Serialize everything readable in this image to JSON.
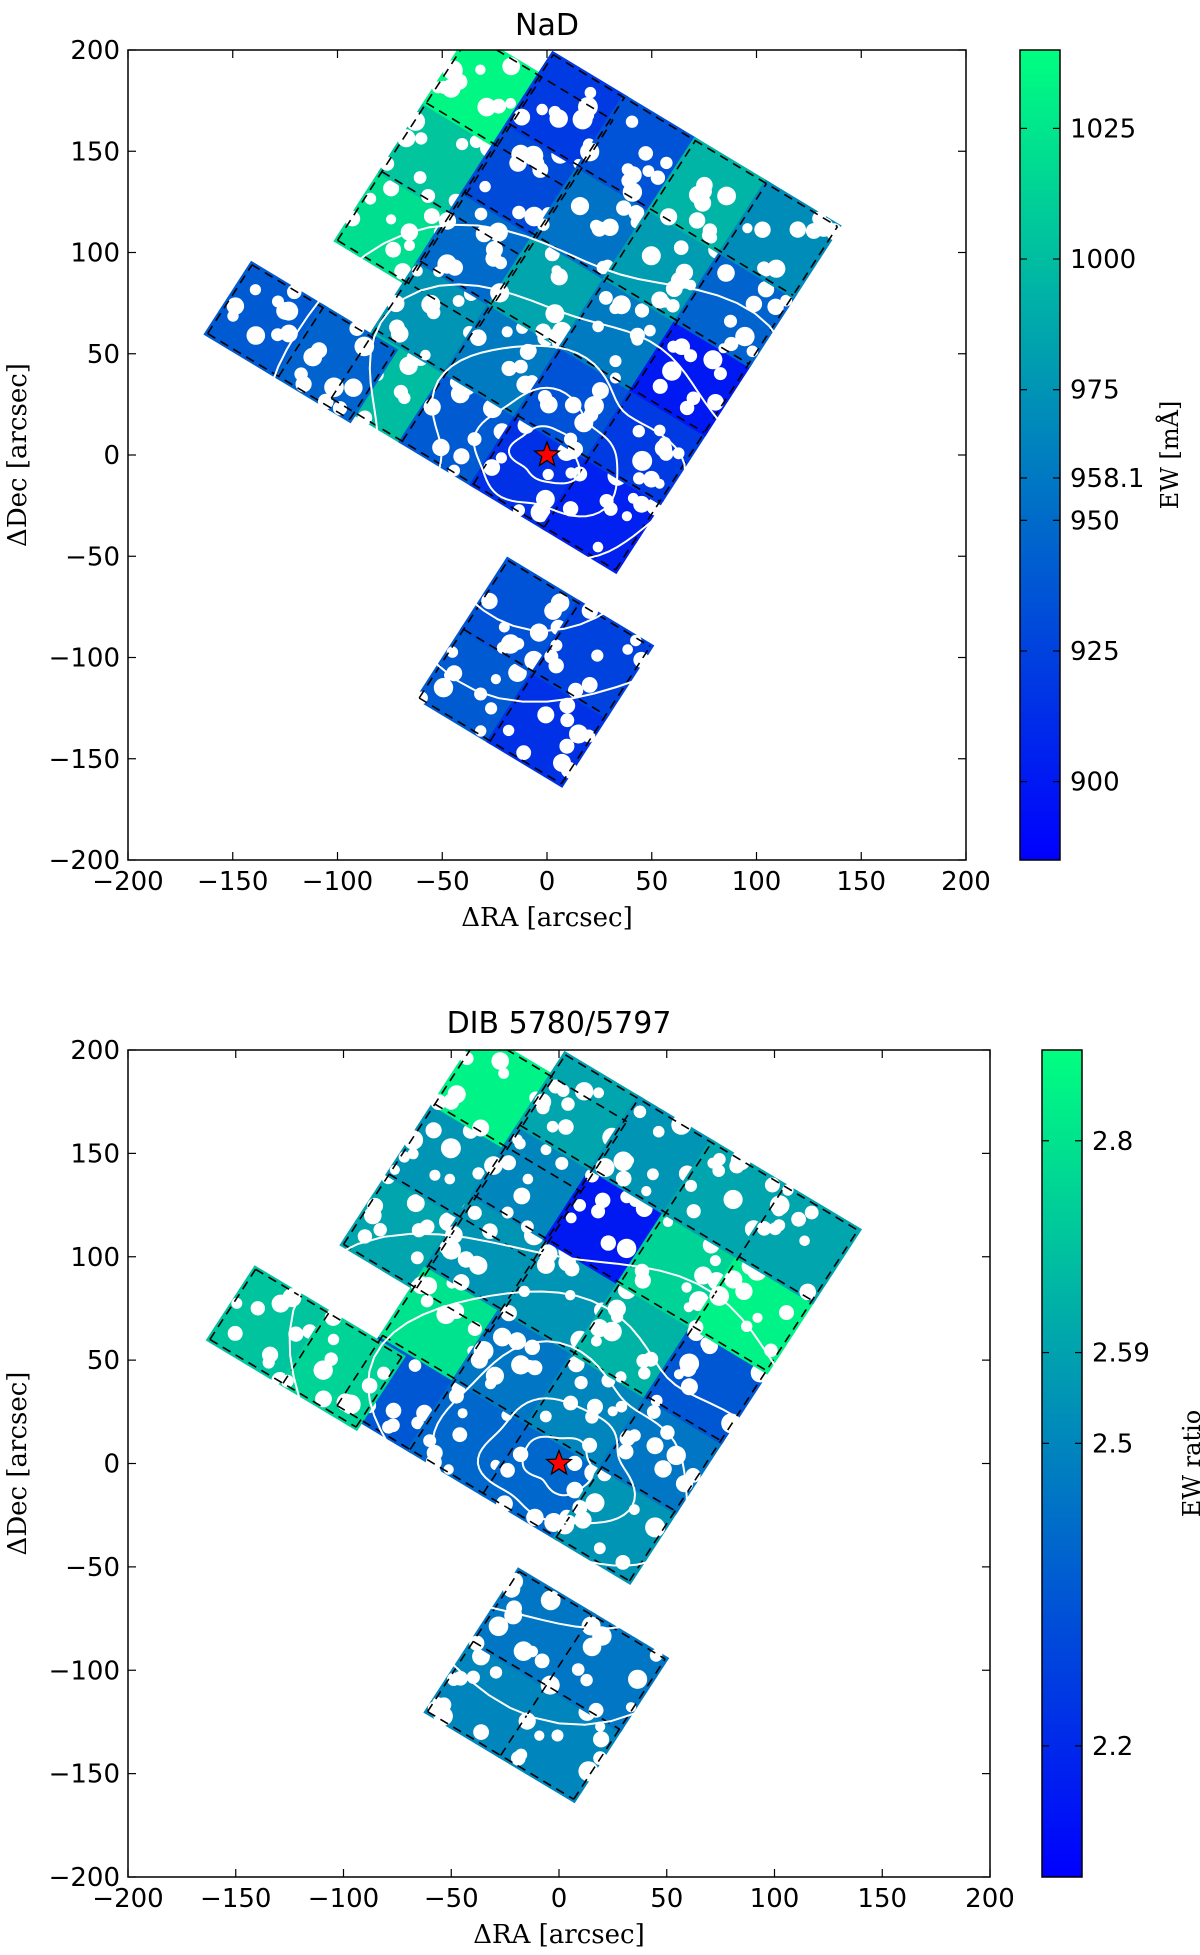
{
  "chart_data": [
    {
      "type": "heatmap",
      "title": "NaD",
      "xlabel": "ΔRA [arcsec]",
      "ylabel": "ΔDec [arcsec]",
      "xlim": [
        -200,
        200
      ],
      "ylim": [
        -200,
        200
      ],
      "xticks": [
        -200,
        -150,
        -100,
        -50,
        0,
        50,
        100,
        150,
        200
      ],
      "yticks": [
        -200,
        -150,
        -100,
        -50,
        0,
        50,
        100,
        150,
        200
      ],
      "x_tick_labels": [
        "−200",
        "−150",
        "−100",
        "−50",
        "0",
        "50",
        "100",
        "150",
        "200"
      ],
      "y_tick_labels": [
        "−200",
        "−150",
        "−100",
        "−50",
        "0",
        "50",
        "100",
        "150",
        "200"
      ],
      "colorbar": {
        "label": "EW [mÅ]",
        "range": [
          885,
          1040
        ],
        "ticks": [
          900,
          925,
          950,
          958.1,
          975,
          1000,
          1025
        ],
        "tick_labels": [
          "900",
          "925",
          "950",
          "958.1",
          "975",
          "1000",
          "1025"
        ],
        "colormap": [
          "#0000ff",
          "#00ff80"
        ]
      },
      "star": {
        "x": 0,
        "y": 0,
        "color": "#ff0000"
      },
      "cells": [
        {
          "group": "A",
          "i": 0,
          "j": 0,
          "value": 1020
        },
        {
          "group": "A",
          "i": 0,
          "j": 1,
          "value": 1005
        },
        {
          "group": "A",
          "i": 0,
          "j": 2,
          "value": 1035
        },
        {
          "group": "A",
          "i": 1,
          "j": 0,
          "value": 993
        },
        {
          "group": "A",
          "i": 1,
          "j": 1,
          "value": 1030
        },
        {
          "group": "A",
          "i": 1,
          "j": 2,
          "value": 955
        },
        {
          "group": "B",
          "i": 0,
          "j": 0,
          "value": 1000
        },
        {
          "group": "B",
          "i": 0,
          "j": 1,
          "value": 975
        },
        {
          "group": "B",
          "i": 0,
          "j": 2,
          "value": 950
        },
        {
          "group": "B",
          "i": 0,
          "j": 3,
          "value": 930
        },
        {
          "group": "B",
          "i": 0,
          "j": 4,
          "value": 920
        },
        {
          "group": "B",
          "i": 1,
          "j": 0,
          "value": 940
        },
        {
          "group": "B",
          "i": 1,
          "j": 1,
          "value": 960
        },
        {
          "group": "B",
          "i": 1,
          "j": 2,
          "value": 985
        },
        {
          "group": "B",
          "i": 1,
          "j": 3,
          "value": 955
        },
        {
          "group": "B",
          "i": 1,
          "j": 4,
          "value": 935
        },
        {
          "group": "B",
          "i": 2,
          "j": 0,
          "value": 915
        },
        {
          "group": "B",
          "i": 2,
          "j": 1,
          "value": 935
        },
        {
          "group": "B",
          "i": 2,
          "j": 2,
          "value": 960
        },
        {
          "group": "B",
          "i": 2,
          "j": 3,
          "value": 980
        },
        {
          "group": "B",
          "i": 2,
          "j": 4,
          "value": 995
        },
        {
          "group": "B",
          "i": 3,
          "j": 0,
          "value": 905
        },
        {
          "group": "B",
          "i": 3,
          "j": 1,
          "value": 920
        },
        {
          "group": "B",
          "i": 3,
          "j": 2,
          "value": 900
        },
        {
          "group": "B",
          "i": 3,
          "j": 3,
          "value": 945
        },
        {
          "group": "B",
          "i": 3,
          "j": 4,
          "value": 970
        },
        {
          "group": "C",
          "i": 0,
          "j": 0,
          "value": 940
        },
        {
          "group": "C",
          "i": 0,
          "j": 1,
          "value": 935
        },
        {
          "group": "C",
          "i": 1,
          "j": 0,
          "value": 915
        },
        {
          "group": "C",
          "i": 1,
          "j": 1,
          "value": 925
        },
        {
          "group": "D",
          "i": 0,
          "j": 0,
          "value": 940
        },
        {
          "group": "D",
          "i": 1,
          "j": 0,
          "value": 945
        }
      ]
    },
    {
      "type": "heatmap",
      "title": "DIB 5780/5797",
      "xlabel": "ΔRA [arcsec]",
      "ylabel": "ΔDec [arcsec]",
      "xlim": [
        -200,
        200
      ],
      "ylim": [
        -200,
        200
      ],
      "xticks": [
        -200,
        -150,
        -100,
        -50,
        0,
        50,
        100,
        150,
        200
      ],
      "yticks": [
        -200,
        -150,
        -100,
        -50,
        0,
        50,
        100,
        150,
        200
      ],
      "x_tick_labels": [
        "−200",
        "−150",
        "−100",
        "−50",
        "0",
        "50",
        "100",
        "150",
        "200"
      ],
      "y_tick_labels": [
        "−200",
        "−150",
        "−100",
        "−50",
        "0",
        "50",
        "100",
        "150",
        "200"
      ],
      "colorbar": {
        "label": "EW ratio",
        "range": [
          2.07,
          2.89
        ],
        "ticks": [
          2.2,
          2.5,
          2.59,
          2.8
        ],
        "tick_labels": [
          "2.2",
          "2.5",
          "2.59",
          "2.8"
        ],
        "colormap": [
          "#0000ff",
          "#00ff80"
        ]
      },
      "star": {
        "x": 0,
        "y": 0,
        "color": "#ff0000"
      },
      "cells": [
        {
          "group": "A",
          "i": 0,
          "j": 0,
          "value": 2.6
        },
        {
          "group": "A",
          "i": 0,
          "j": 1,
          "value": 2.55
        },
        {
          "group": "A",
          "i": 0,
          "j": 2,
          "value": 2.85
        },
        {
          "group": "A",
          "i": 1,
          "j": 0,
          "value": 2.4
        },
        {
          "group": "A",
          "i": 1,
          "j": 1,
          "value": 2.55
        },
        {
          "group": "A",
          "i": 1,
          "j": 2,
          "value": 2.45
        },
        {
          "group": "B",
          "i": 0,
          "j": 0,
          "value": 2.35
        },
        {
          "group": "B",
          "i": 0,
          "j": 1,
          "value": 2.8
        },
        {
          "group": "B",
          "i": 0,
          "j": 2,
          "value": 2.55
        },
        {
          "group": "B",
          "i": 0,
          "j": 3,
          "value": 2.5
        },
        {
          "group": "B",
          "i": 0,
          "j": 4,
          "value": 2.6
        },
        {
          "group": "B",
          "i": 1,
          "j": 0,
          "value": 2.4
        },
        {
          "group": "B",
          "i": 1,
          "j": 1,
          "value": 2.45
        },
        {
          "group": "B",
          "i": 1,
          "j": 2,
          "value": 2.55
        },
        {
          "group": "B",
          "i": 1,
          "j": 3,
          "value": 2.15
        },
        {
          "group": "B",
          "i": 1,
          "j": 4,
          "value": 2.55
        },
        {
          "group": "B",
          "i": 2,
          "j": 0,
          "value": 2.4
        },
        {
          "group": "B",
          "i": 2,
          "j": 1,
          "value": 2.5
        },
        {
          "group": "B",
          "i": 2,
          "j": 2,
          "value": 2.65
        },
        {
          "group": "B",
          "i": 2,
          "j": 3,
          "value": 2.75
        },
        {
          "group": "B",
          "i": 2,
          "j": 4,
          "value": 2.6
        },
        {
          "group": "B",
          "i": 3,
          "j": 0,
          "value": 2.55
        },
        {
          "group": "B",
          "i": 3,
          "j": 1,
          "value": 2.45
        },
        {
          "group": "B",
          "i": 3,
          "j": 2,
          "value": 2.35
        },
        {
          "group": "B",
          "i": 3,
          "j": 3,
          "value": 2.85
        },
        {
          "group": "B",
          "i": 3,
          "j": 4,
          "value": 2.6
        },
        {
          "group": "C",
          "i": 0,
          "j": 0,
          "value": 2.5
        },
        {
          "group": "C",
          "i": 0,
          "j": 1,
          "value": 2.45
        },
        {
          "group": "C",
          "i": 1,
          "j": 0,
          "value": 2.5
        },
        {
          "group": "C",
          "i": 1,
          "j": 1,
          "value": 2.45
        },
        {
          "group": "D",
          "i": 0,
          "j": 0,
          "value": 2.7
        },
        {
          "group": "D",
          "i": 1,
          "j": 0,
          "value": 2.75
        }
      ]
    }
  ]
}
